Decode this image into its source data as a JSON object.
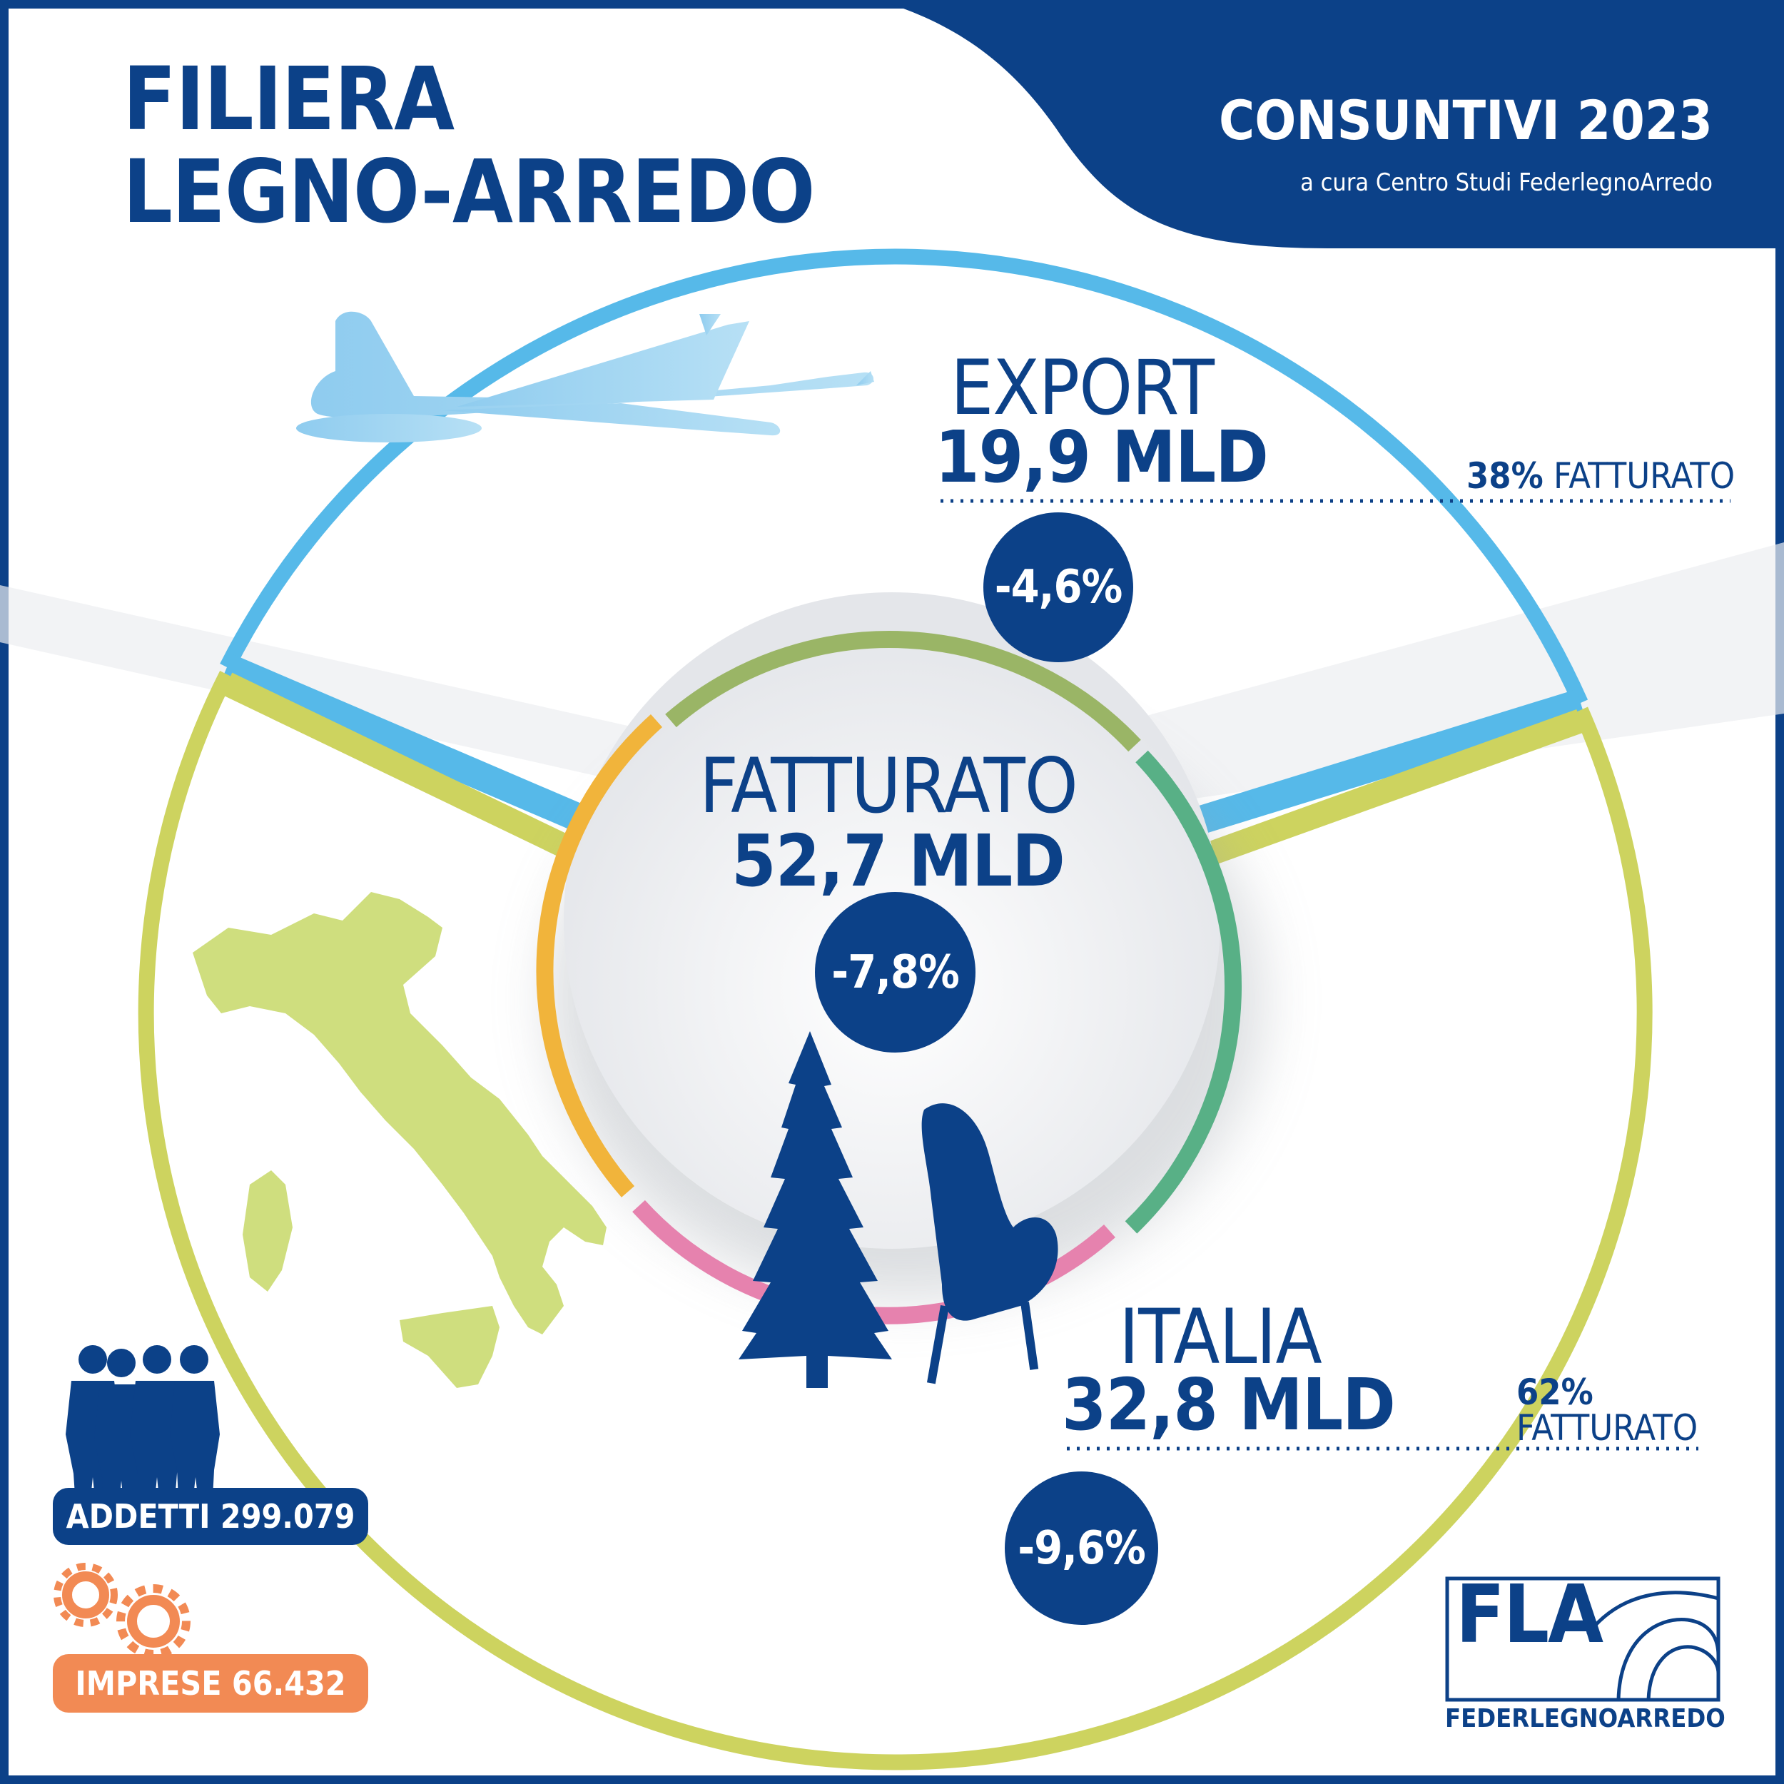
{
  "header": {
    "title_line1": "FILIERA",
    "title_line2": "LEGNO-ARREDO",
    "report_title": "CONSUNTIVI 2023",
    "report_subtitle": "a cura Centro Studi FederlegnoArredo"
  },
  "export": {
    "label": "EXPORT",
    "value": "19,9 MLD",
    "change": "-4,6%",
    "share_pct": "38%",
    "share_label": "FATTURATO",
    "icon": "airplane-icon"
  },
  "fatturato": {
    "label": "FATTURATO",
    "value": "52,7 MLD",
    "change": "-7,8%",
    "icons": [
      "tree-icon",
      "armchair-icon"
    ]
  },
  "italia": {
    "label": "ITALIA",
    "value": "32,8 MLD",
    "change": "-9,6%",
    "share_pct": "62%",
    "share_label": "FATTURATO",
    "icon": "italy-map-icon"
  },
  "stats": {
    "addetti": "ADDETTI 299.079",
    "imprese": "IMPRESE 66.432"
  },
  "logo": {
    "mark": "FLA",
    "name": "FEDERLEGNOARREDO"
  },
  "colors": {
    "navy": "#0c4188",
    "export_blue": "#56b9e9",
    "italia_green": "#cdd35f",
    "inner_orange": "#f1b43b",
    "inner_green": "#9ab566",
    "inner_teal": "#58b086",
    "inner_pink": "#e682ae",
    "imprese_orange": "#f28a54"
  }
}
